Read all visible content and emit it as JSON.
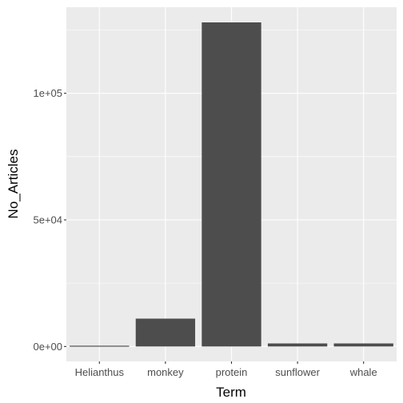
{
  "chart_data": {
    "type": "bar",
    "xlabel": "Term",
    "ylabel": "No_Articles",
    "categories": [
      "Helianthus",
      "monkey",
      "protein",
      "sunflower",
      "whale"
    ],
    "values": [
      300,
      11000,
      128000,
      1200,
      1200
    ],
    "ylim": [
      -5900,
      134000
    ],
    "yticks": [
      0,
      50000,
      100000
    ],
    "ytick_labels": [
      "0e+00",
      "5e+04",
      "1e+05"
    ],
    "grid": true,
    "legend": "none",
    "colors": {
      "panel": "#ebebeb",
      "grid_major": "#ffffff",
      "bar": "#4d4d4d",
      "tick_text": "#4d4d4d",
      "title_text": "#000000"
    }
  }
}
